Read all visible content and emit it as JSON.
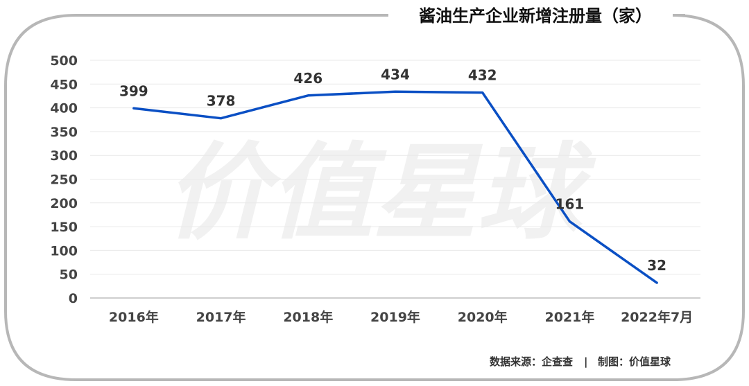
{
  "chart_data": {
    "type": "line",
    "title": "酱油生产企业新增注册量（家）",
    "categories": [
      "2016年",
      "2017年",
      "2018年",
      "2019年",
      "2020年",
      "2021年",
      "2022年7月"
    ],
    "series": [
      {
        "values": [
          399,
          378,
          426,
          434,
          432,
          161,
          32
        ]
      }
    ],
    "ylim": [
      0,
      500
    ],
    "yticks": [
      0,
      50,
      100,
      150,
      200,
      250,
      300,
      350,
      400,
      450,
      500
    ],
    "grid": true,
    "line_color": "#0a4fc4"
  },
  "watermark": "价值星球",
  "footer": {
    "source": "数据来源：企查查",
    "separator": "|",
    "credit": "制图：价值星球"
  }
}
